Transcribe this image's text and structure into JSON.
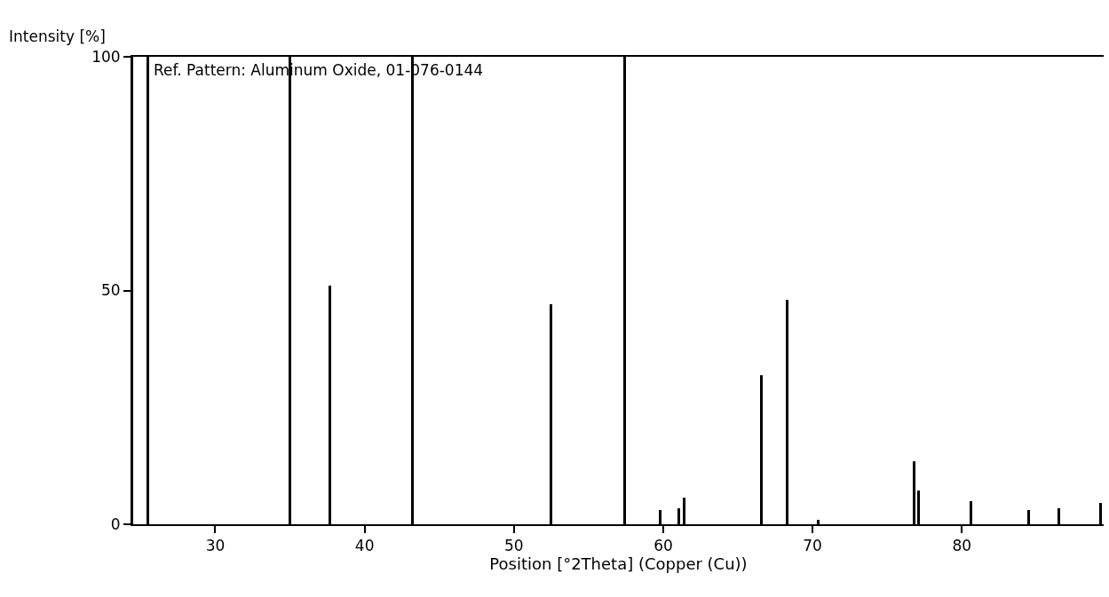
{
  "chart_data": {
    "type": "bar",
    "xlabel": "Position [°2Theta] (Copper (Cu))",
    "ylabel": "Intensity [%]",
    "annotations": [
      "Ref. Pattern: Aluminum Oxide, 01-076-0144"
    ],
    "x": [
      25.5,
      35.0,
      37.65,
      43.2,
      52.5,
      57.4,
      59.8,
      61.07,
      61.4,
      66.56,
      68.3,
      70.4,
      76.8,
      77.1,
      80.6,
      84.5,
      86.5,
      89.3
    ],
    "values": [
      100,
      100,
      51,
      100,
      47,
      100,
      3.1,
      3.5,
      5.6,
      31.8,
      48,
      1,
      13.4,
      7.2,
      5,
      3.1,
      3.5,
      4.6
    ],
    "color": "#000000",
    "xlim": [
      24.5,
      89.5
    ],
    "xticks": [
      30,
      40,
      50,
      60,
      70,
      80
    ],
    "ylim": [
      0,
      100
    ],
    "yticks": [
      0,
      50,
      100
    ]
  }
}
